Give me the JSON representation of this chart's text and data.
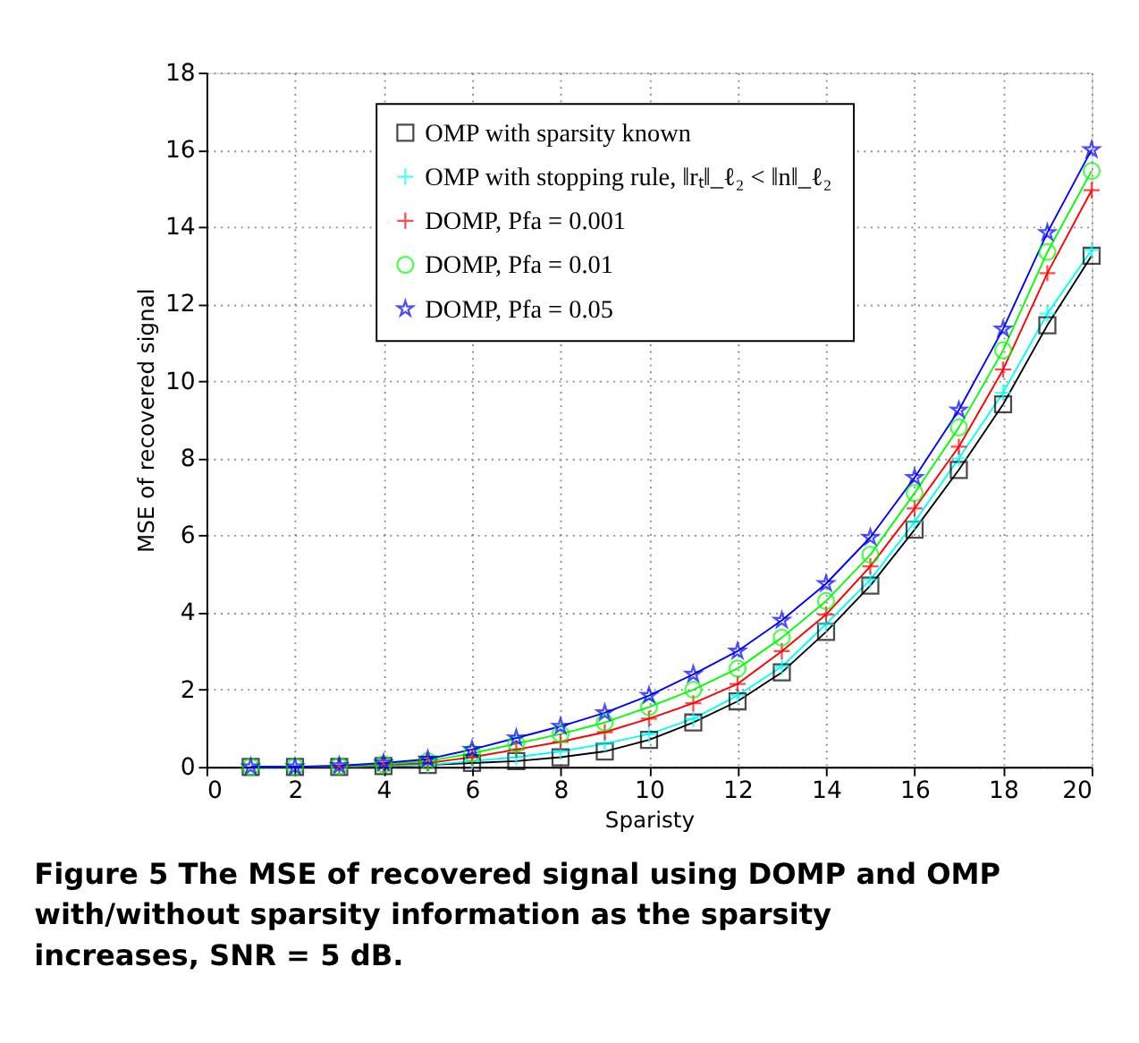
{
  "chart_data": {
    "type": "line",
    "xlabel": "Sparisty",
    "ylabel": "MSE of recovered signal",
    "x": [
      1,
      2,
      3,
      4,
      5,
      6,
      7,
      8,
      9,
      10,
      11,
      12,
      13,
      14,
      15,
      16,
      17,
      18,
      19,
      20
    ],
    "xlim": [
      0,
      20
    ],
    "xticks": [
      0,
      2,
      4,
      6,
      8,
      10,
      12,
      14,
      16,
      18,
      20
    ],
    "ylim": [
      0,
      18
    ],
    "yticks": [
      0,
      2,
      4,
      6,
      8,
      10,
      12,
      14,
      16,
      18
    ],
    "grid": true,
    "legend": "top left",
    "line_style": "solid",
    "series": [
      {
        "name": "OMP with sparsity known",
        "color": "#000000",
        "marker": "square",
        "values": [
          0,
          0,
          0,
          0.02,
          0.05,
          0.1,
          0.15,
          0.25,
          0.4,
          0.7,
          1.15,
          1.7,
          2.45,
          3.5,
          4.7,
          6.15,
          7.7,
          9.4,
          11.45,
          13.25
        ]
      },
      {
        "name": "OMP with stopping rule, ‖rₜ‖_ℓ₂ < ‖n‖_ℓ₂",
        "color": "#00ffff",
        "marker": "cross",
        "values": [
          null,
          null,
          0,
          0.03,
          0.05,
          0.15,
          0.25,
          0.4,
          0.6,
          0.85,
          1.25,
          1.85,
          2.6,
          3.7,
          4.85,
          6.35,
          8.0,
          9.7,
          11.75,
          13.4
        ]
      },
      {
        "name": "DOMP, Pfa = 0.001",
        "color": "#ff0000",
        "marker": "cross",
        "values": [
          null,
          null,
          0,
          0.05,
          0.1,
          0.25,
          0.45,
          0.65,
          0.9,
          1.25,
          1.65,
          2.15,
          3.0,
          3.95,
          5.2,
          6.7,
          8.3,
          10.3,
          12.8,
          14.95
        ]
      },
      {
        "name": "DOMP, Pfa = 0.01",
        "color": "#00ff00",
        "marker": "circle",
        "values": [
          0,
          0,
          0.02,
          0.07,
          0.15,
          0.35,
          0.6,
          0.85,
          1.15,
          1.55,
          2.0,
          2.55,
          3.35,
          4.3,
          5.5,
          7.1,
          8.8,
          10.8,
          13.35,
          15.45
        ]
      },
      {
        "name": "DOMP, Pfa = 0.05",
        "color": "#0000ff",
        "marker": "star",
        "values": [
          0,
          0,
          0.03,
          0.1,
          0.2,
          0.45,
          0.75,
          1.05,
          1.4,
          1.85,
          2.4,
          3.0,
          3.8,
          4.75,
          5.95,
          7.5,
          9.25,
          11.35,
          13.85,
          16.0
        ]
      }
    ],
    "annotations": [
      "Figure 5 The MSE of recovered signal using DOMP and OMP with/without sparsity information as the sparsity increases, SNR = 5 dB."
    ]
  }
}
